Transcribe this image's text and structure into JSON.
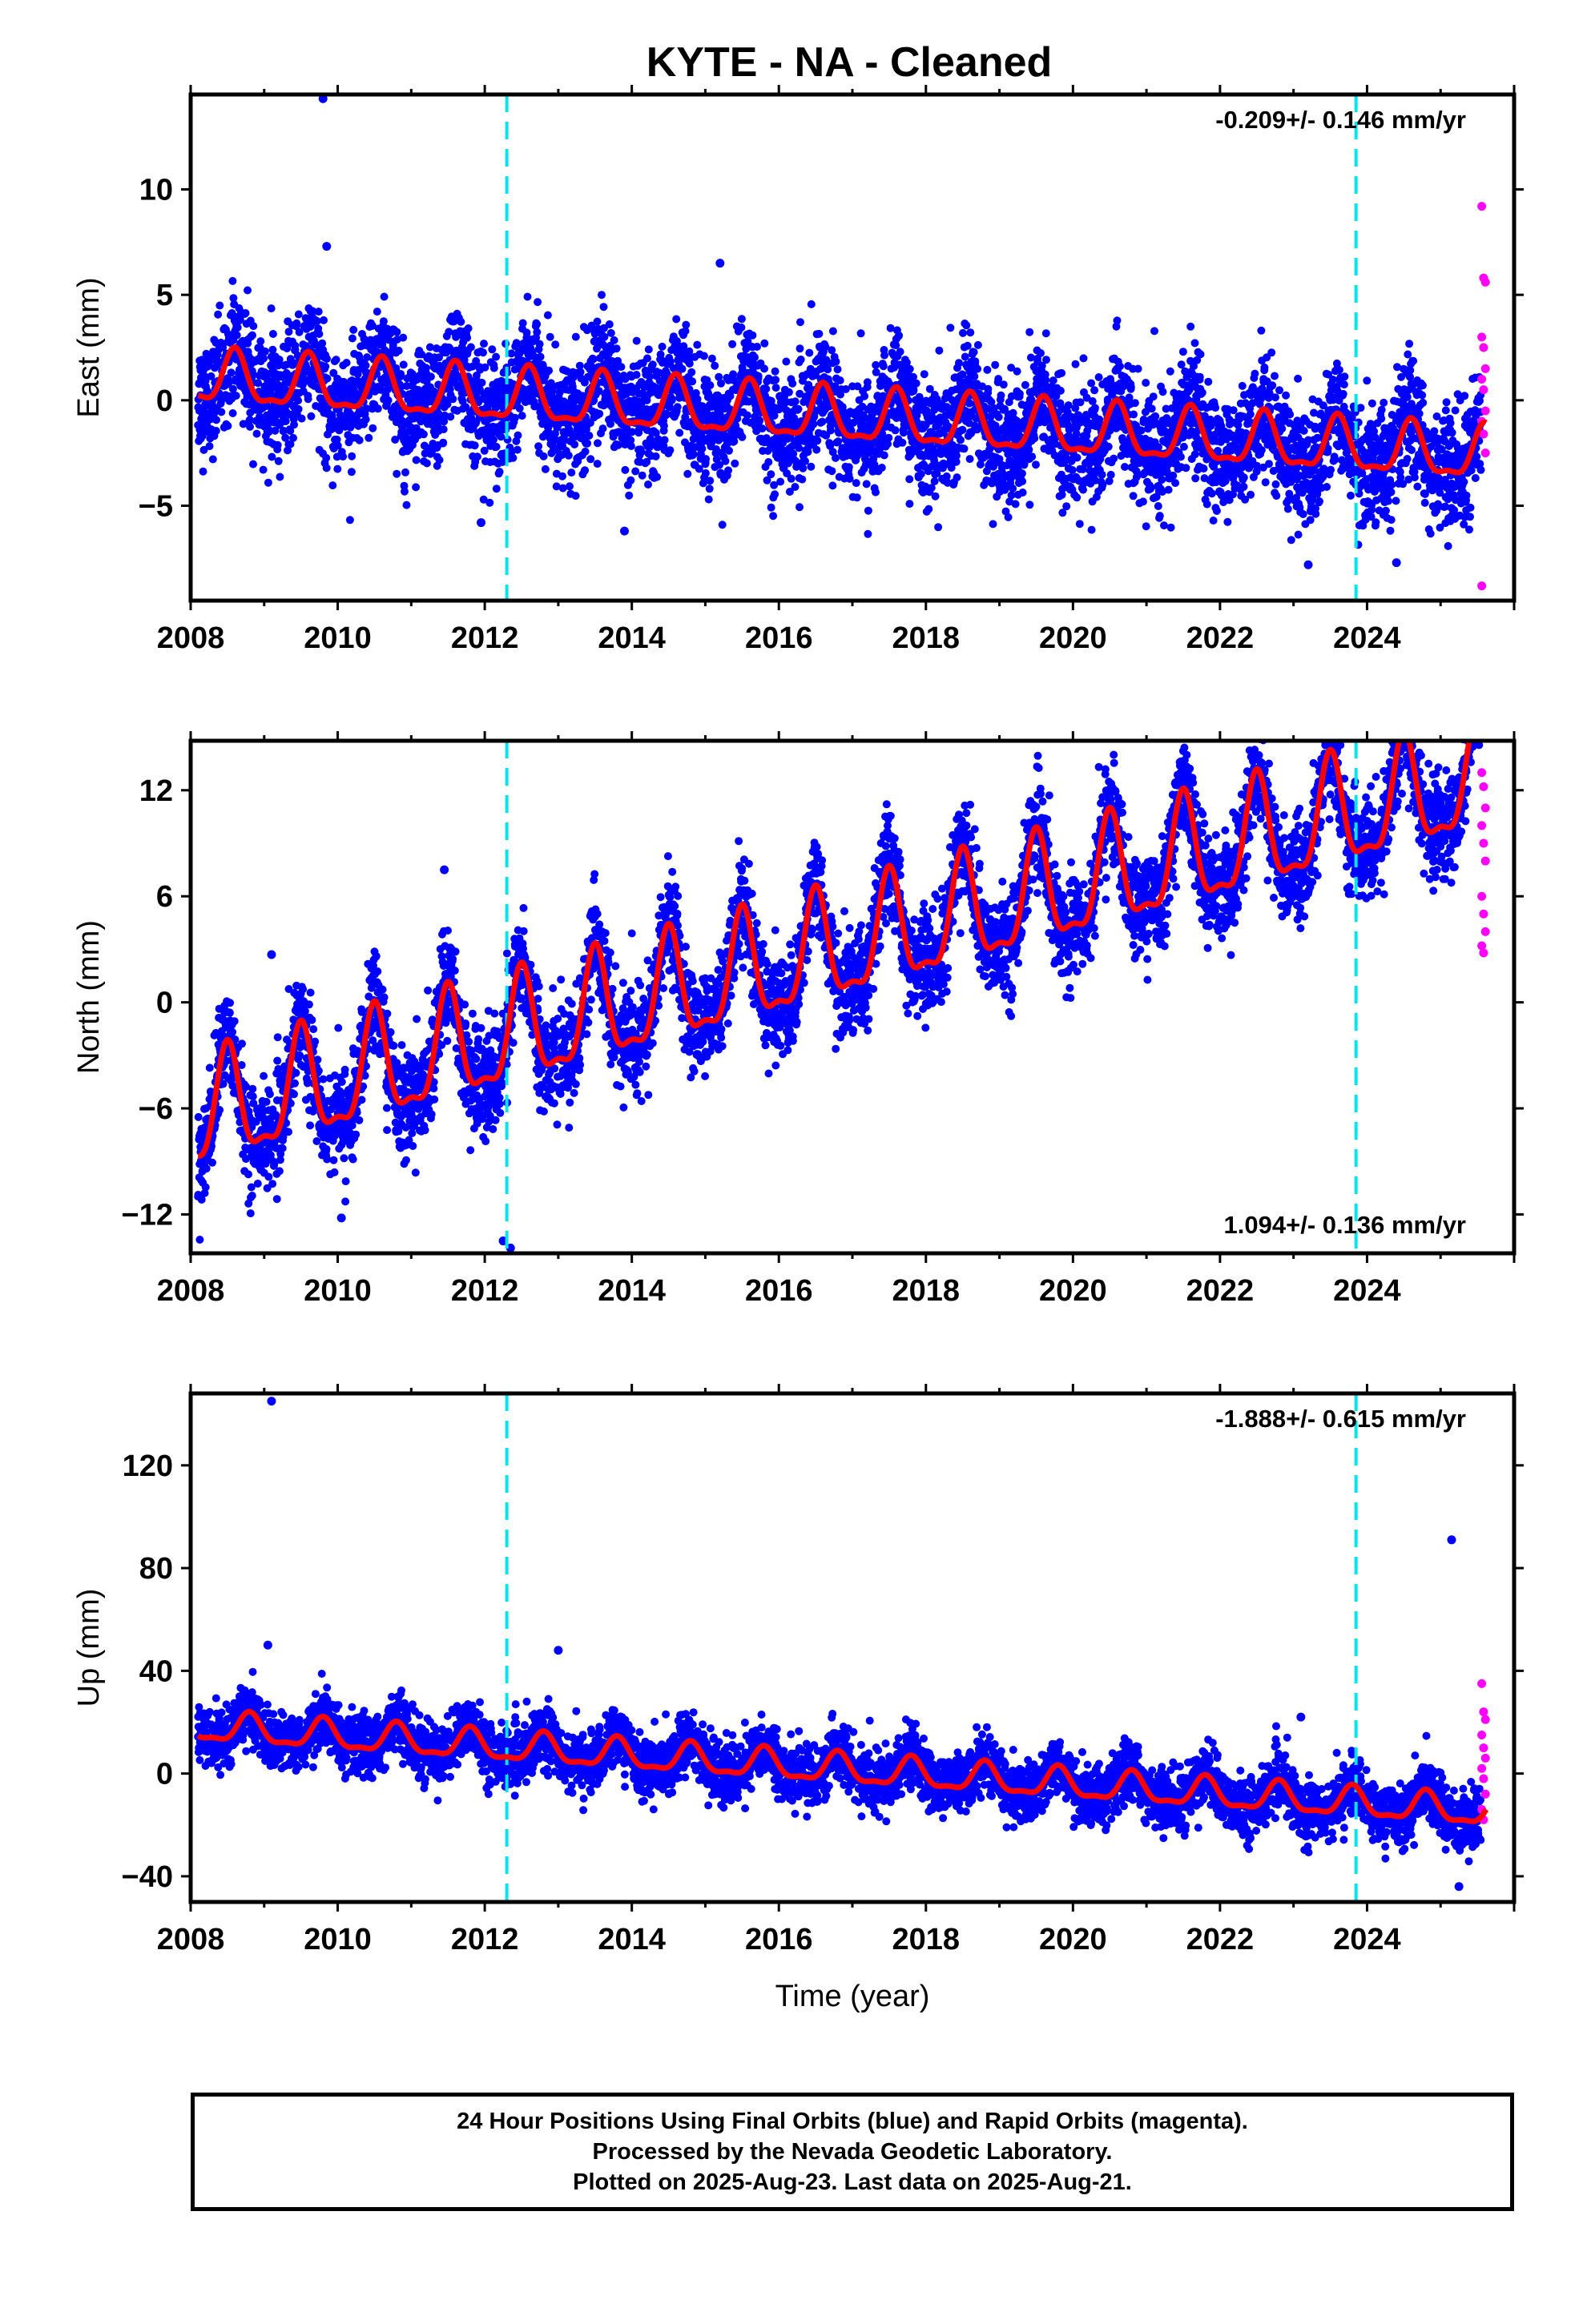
{
  "title": "KYTE  - NA - Cleaned",
  "colors": {
    "final_orbits": "#0000ff",
    "rapid_orbits": "#ff00ff",
    "model": "#ff0000",
    "events": "#00e5ee"
  },
  "chart_data": [
    {
      "type": "scatter",
      "component": "east",
      "ylabel": "East (mm)",
      "xlabel": "",
      "xlim": [
        2008.0,
        2026.0
      ],
      "ylim": [
        -9.5,
        14.5
      ],
      "xticks": [
        2008,
        2010,
        2012,
        2014,
        2016,
        2018,
        2020,
        2022,
        2024
      ],
      "yticks": [
        -5,
        0,
        5,
        10
      ],
      "rate_label": "-0.209+/- 0.146 mm/yr",
      "rate_position": "top-right",
      "events": [
        2012.3,
        2023.85
      ],
      "trend": {
        "start_year": 2008.1,
        "offset": 1.0,
        "rate": -0.209,
        "annual_amp": 1.2,
        "annual_phase": 2008.6
      },
      "scatter": 1.35,
      "rapid_orbit_values": [
        9.2,
        5.8,
        5.6,
        3.0,
        2.5,
        1.5,
        1.0,
        0.5,
        -0.5,
        -1.0,
        -1.6,
        -2.5,
        -8.8
      ],
      "outliers": [
        [
          2009.8,
          14.3
        ],
        [
          2009.85,
          7.3
        ],
        [
          2011.95,
          -5.8
        ],
        [
          2013.9,
          -6.2
        ],
        [
          2015.2,
          6.5
        ],
        [
          2023.2,
          -7.8
        ],
        [
          2024.4,
          -7.7
        ]
      ]
    },
    {
      "type": "scatter",
      "component": "north",
      "ylabel": "North (mm)",
      "xlabel": "",
      "xlim": [
        2008.0,
        2026.0
      ],
      "ylim": [
        -14.2,
        14.8
      ],
      "xticks": [
        2008,
        2010,
        2012,
        2014,
        2016,
        2018,
        2020,
        2022,
        2024
      ],
      "yticks": [
        -12,
        -6,
        0,
        6,
        12
      ],
      "rate_label": "1.094+/- 0.136 mm/yr",
      "rate_position": "bottom-right",
      "events": [
        2012.3,
        2023.85
      ],
      "trend": {
        "start_year": 2008.1,
        "offset": -6.6,
        "rate": 1.094,
        "annual_amp": 3.0,
        "annual_phase": 2008.5
      },
      "scatter": 1.4,
      "rapid_orbit_values": [
        13.0,
        12.2,
        11.0,
        10.0,
        9.0,
        8.0,
        6.0,
        5.0,
        4.0,
        3.2,
        2.8
      ],
      "outliers": [
        [
          2009.1,
          2.7
        ],
        [
          2010.05,
          -12.2
        ],
        [
          2011.45,
          7.5
        ],
        [
          2012.25,
          -13.5
        ],
        [
          2012.35,
          -13.9
        ],
        [
          2022.45,
          14.0
        ],
        [
          2024.45,
          14.2
        ]
      ]
    },
    {
      "type": "scatter",
      "component": "up",
      "ylabel": "Up (mm)",
      "xlabel": "Time (year)",
      "xlim": [
        2008.0,
        2026.0
      ],
      "ylim": [
        -50,
        148
      ],
      "xticks": [
        2008,
        2010,
        2012,
        2014,
        2016,
        2018,
        2020,
        2022,
        2024
      ],
      "yticks": [
        -40,
        0,
        40,
        80,
        120
      ],
      "rate_label": "-1.888+/- 0.615 mm/yr",
      "rate_position": "top-right",
      "events": [
        2012.3,
        2023.85
      ],
      "trend": {
        "start_year": 2008.1,
        "offset": 18.0,
        "rate": -1.888,
        "annual_amp": 5.5,
        "annual_phase": 2008.8
      },
      "scatter": 5.5,
      "rapid_orbit_values": [
        35.0,
        24.0,
        21.0,
        15.0,
        10.0,
        6.0,
        2.0,
        -2.0,
        -8.0,
        -14.0,
        -18.0
      ],
      "outliers": [
        [
          2009.1,
          145.0
        ],
        [
          2009.05,
          50.0
        ],
        [
          2013.0,
          48.0
        ],
        [
          2023.1,
          22.0
        ],
        [
          2025.15,
          91.0
        ],
        [
          2025.25,
          -44.0
        ]
      ]
    }
  ],
  "footer": {
    "line1": "24 Hour Positions Using Final Orbits (blue) and Rapid Orbits (magenta).",
    "line2": "Processed by the Nevada Geodetic Laboratory.",
    "line3": "Plotted on 2025-Aug-23. Last data on 2025-Aug-21."
  }
}
